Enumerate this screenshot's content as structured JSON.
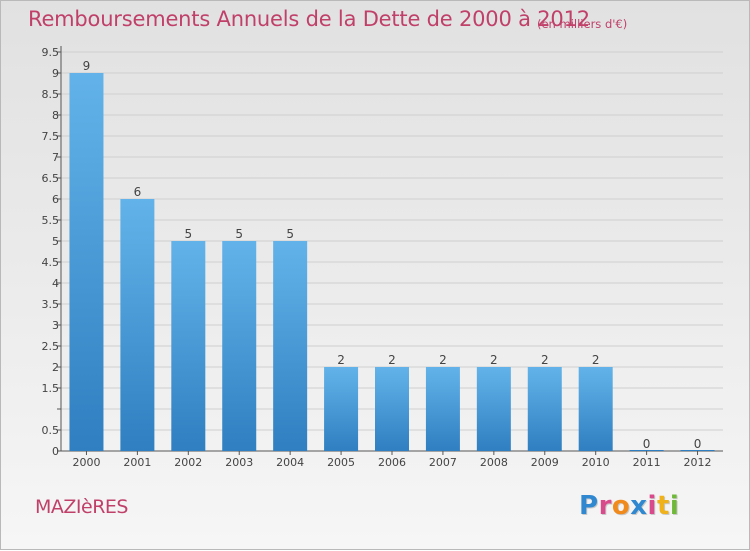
{
  "title": "Remboursements Annuels de la Dette de 2000 à 2012",
  "subtitle": "(en milliers d'€)",
  "place": "MAZIèRES",
  "logo": {
    "letters": [
      "P",
      "r",
      "o",
      "x",
      "i",
      "t",
      "i"
    ],
    "colors": [
      "#2f88d0",
      "#d94a8c",
      "#f08a1c",
      "#2f88d0",
      "#d94a8c",
      "#f0b21c",
      "#6fb83a"
    ]
  },
  "colors": {
    "bar_light": "#63b3ea",
    "bar_dark": "#2f7fc1",
    "grid": "#cfcfcf",
    "text": "#444444",
    "accent": "#c0406a"
  },
  "chart_data": {
    "type": "bar",
    "categories": [
      "2000",
      "2001",
      "2002",
      "2003",
      "2004",
      "2005",
      "2006",
      "2007",
      "2008",
      "2009",
      "2010",
      "2011",
      "2012"
    ],
    "values": [
      9,
      6,
      5,
      5,
      5,
      2,
      2,
      2,
      2,
      2,
      2,
      0,
      0
    ],
    "data_labels": [
      "9",
      "6",
      "5",
      "5",
      "5",
      "2",
      "2",
      "2",
      "2",
      "2",
      "2",
      "0",
      "0"
    ],
    "yticks": [
      0,
      0.5,
      1,
      1.5,
      2,
      2.5,
      3,
      3.5,
      4,
      4.5,
      5,
      5.5,
      6,
      6.5,
      7,
      7.5,
      8,
      8.5,
      9,
      9.5
    ],
    "ytick_labels": [
      "0",
      "0.5",
      "",
      "1.5",
      "2",
      "2.5",
      "3",
      "3.5",
      "4",
      "4.5",
      "5",
      "5.5",
      "6",
      "6.5",
      "7",
      "7.5",
      "8",
      "8.5",
      "9",
      "9.5"
    ],
    "ylim": [
      0,
      9.5
    ],
    "grid": true
  }
}
